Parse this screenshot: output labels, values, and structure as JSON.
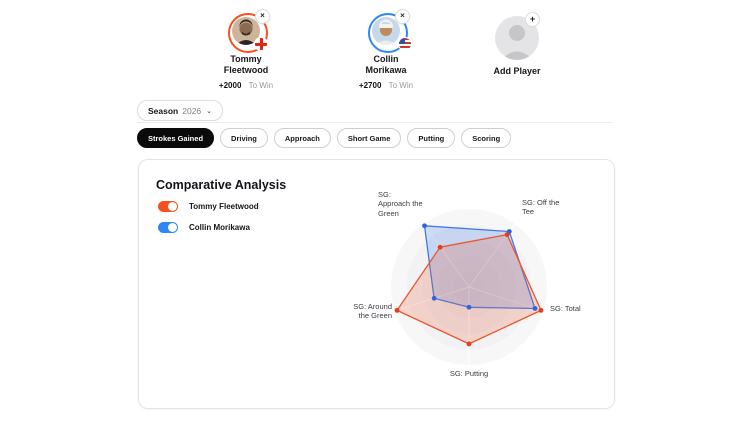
{
  "header": {
    "players": [
      {
        "name": "Tommy Fleetwood",
        "odds": "+2000",
        "odds_suffix": "To Win",
        "accent": "#f4511e",
        "flag": "england-flag",
        "close_label": "×"
      },
      {
        "name": "Collin Morikawa",
        "odds": "+2700",
        "odds_suffix": "To Win",
        "accent": "#2e87f5",
        "flag": "usa-flag",
        "close_label": "×"
      }
    ],
    "add_player": {
      "label": "Add Player",
      "plus_label": "+"
    }
  },
  "filters": {
    "season_label": "Season",
    "season_value": "2026",
    "chevron": "⌄",
    "tabs": [
      "Strokes Gained",
      "Driving",
      "Approach",
      "Short Game",
      "Putting",
      "Scoring"
    ],
    "active_tab": "Strokes Gained"
  },
  "card": {
    "title": "Comparative Analysis",
    "legend": [
      {
        "label": "Tommy Fleetwood",
        "color": "#f4511e"
      },
      {
        "label": "Collin Morikawa",
        "color": "#2e87f5"
      }
    ]
  },
  "chart_data": {
    "type": "radar",
    "axes": [
      "SG: Off the Tee",
      "SG: Approach the Green",
      "SG: Around the Green",
      "SG: Putting",
      "SG: Total"
    ],
    "axis_labels_display": [
      "SG: Off the\nTee",
      "SG:\nApproach the\nGreen",
      "SG: Around\nthe Green",
      "SG: Putting",
      "SG: Total"
    ],
    "axis_angles_deg": [
      54,
      126,
      198,
      270,
      342
    ],
    "value_scale": "relative radius 0-1 (no numeric ticks shown)",
    "series": [
      {
        "name": "Tommy Fleetwood",
        "stroke": "#e8572f",
        "fill": "rgba(237,94,58,0.22)",
        "dot": "#e53e1c",
        "values": [
          0.83,
          0.63,
          0.97,
          0.73,
          0.97
        ]
      },
      {
        "name": "Collin Morikawa",
        "stroke": "#4479e4",
        "fill": "rgba(76,128,232,0.25)",
        "dot": "#2b66e0",
        "values": [
          0.88,
          0.97,
          0.47,
          0.26,
          0.89
        ]
      }
    ],
    "grid": "concentric-circles",
    "legend_position": "top-left"
  }
}
